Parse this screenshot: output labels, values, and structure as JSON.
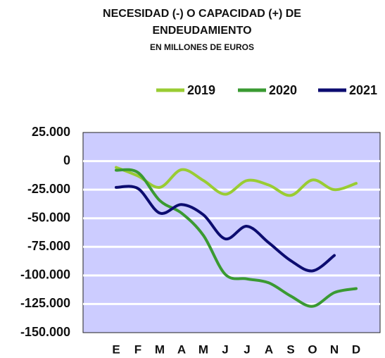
{
  "chart_data": {
    "type": "line",
    "title": [
      "NECESIDAD (-) O CAPACIDAD (+) DE",
      "ENDEUDAMIENTO"
    ],
    "subtitle": "EN MILLONES DE EUROS",
    "categories": [
      "E",
      "F",
      "M",
      "A",
      "M",
      "J",
      "J",
      "A",
      "S",
      "O",
      "N",
      "D"
    ],
    "series": [
      {
        "name": "2019",
        "color": "#99cc33",
        "values": [
          -5500,
          -13000,
          -23000,
          -7500,
          -17000,
          -29000,
          -17000,
          -21000,
          -30000,
          -16500,
          -25000,
          -19500
        ]
      },
      {
        "name": "2020",
        "color": "#3a9a32",
        "values": [
          -8000,
          -10000,
          -34500,
          -45500,
          -65000,
          -99000,
          -103000,
          -106500,
          -118000,
          -127000,
          -115000,
          -111500
        ]
      },
      {
        "name": "2021",
        "color": "#0c0c70",
        "values": [
          -23000,
          -24000,
          -45500,
          -38000,
          -47000,
          -68000,
          -57000,
          -71500,
          -87000,
          -96000,
          -82500,
          null
        ]
      }
    ],
    "ylim": [
      -150000,
      25000
    ],
    "yticks": [
      {
        "value": -150000,
        "label": "-150.000"
      },
      {
        "value": -125000,
        "label": "-125.000"
      },
      {
        "value": -100000,
        "label": "-100.000"
      },
      {
        "value": -75000,
        "label": "-75.000"
      },
      {
        "value": -50000,
        "label": "-50.000"
      },
      {
        "value": -25000,
        "label": "-25.000"
      },
      0,
      {
        "value": 25000,
        "label": "25.000"
      }
    ],
    "grid": true,
    "legend": "top-right"
  }
}
